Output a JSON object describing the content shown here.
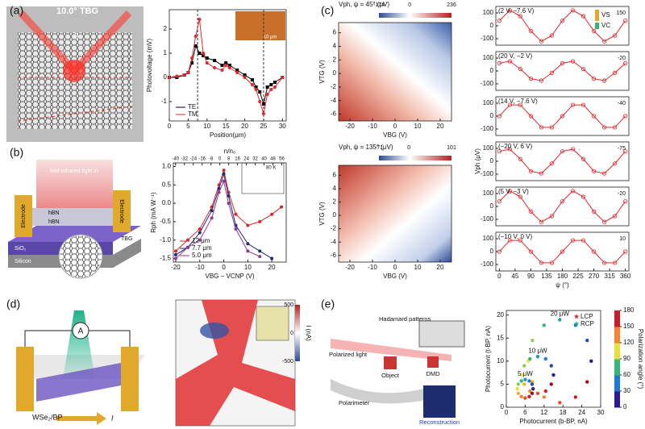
{
  "panels": {
    "a": {
      "label": "(a)",
      "title": "10.0° TBG",
      "angle": "θ",
      "inset_scale": "10 μm"
    },
    "b": {
      "label": "(b)",
      "light": "Mid-infrared light in",
      "electrode_left": "Electrode",
      "electrode_right": "Electrode",
      "hbn_top": "hBN",
      "hbn_bottom": "hBN",
      "tbg": "TBG",
      "sio2": "SiO₂",
      "silicon": "Silicon",
      "inset_temp": "80 K"
    },
    "c": {
      "label": "(c)",
      "vs": "VS",
      "vc": "VC",
      "maps": [
        {
          "title": "Vph, ψ = 45° (μV)",
          "clim": [
            -174,
            236
          ],
          "cticks": [
            -174,
            0,
            236
          ],
          "x_label": "VBG (V)",
          "y_label": "VTG (V)",
          "xlim": [
            -25,
            25
          ],
          "xticks": [
            -20,
            -10,
            0,
            10,
            20
          ],
          "ylim": [
            -7,
            7.5
          ],
          "yticks": [
            -6,
            -4,
            -2,
            0,
            2,
            4,
            6
          ]
        },
        {
          "title": "Vph, ψ = 135° (μV)",
          "clim": [
            -71,
            101
          ],
          "cticks": [
            -71,
            0,
            101
          ],
          "x_label": "VBG (V)",
          "y_label": "VTG (V)",
          "xlim": [
            -25,
            25
          ],
          "xticks": [
            -20,
            -10,
            0,
            10,
            20
          ],
          "ylim": [
            -7,
            7.5
          ],
          "yticks": [
            -6,
            -4,
            -2,
            0,
            2,
            4,
            6
          ]
        }
      ]
    },
    "d": {
      "label": "(d)",
      "meter": "A",
      "material": "WSe₂/BP",
      "current": "I",
      "cbar_label": "I (nA)",
      "cticks": [
        500,
        0,
        -500
      ],
      "clim": [
        -500,
        500
      ]
    },
    "e": {
      "label": "(e)",
      "patterns": "Hadamard patterns",
      "light": "Polarized light",
      "object": "Object",
      "dmd": "DMD",
      "polarimeter": "Polarimeter",
      "reconstruction": "Reconstruction"
    }
  },
  "chart_data": [
    {
      "type": "line",
      "x_label": "Position(μm)",
      "y_label": "Photovoltage (mV)",
      "x": [
        0,
        2,
        4,
        5,
        6,
        7,
        8,
        9,
        10,
        12,
        14,
        15,
        16,
        18,
        20,
        22,
        23,
        24,
        25,
        26,
        27,
        28,
        30
      ],
      "series": [
        {
          "name": "TE",
          "color": "#000000",
          "marker": "square",
          "values": [
            0,
            0,
            0.1,
            0.2,
            0.6,
            1.3,
            1.0,
            0.9,
            0.8,
            0.7,
            0.5,
            0.6,
            0.5,
            0.3,
            0.1,
            -0.1,
            -0.4,
            -0.6,
            -1.1,
            -0.4,
            -0.3,
            -0.2,
            0
          ]
        },
        {
          "name": "TM",
          "color": "#e3262a",
          "marker": "circle",
          "values": [
            0,
            0.05,
            0.1,
            0.2,
            0.8,
            1.7,
            2.4,
            1.0,
            0.6,
            0.4,
            0.3,
            0.5,
            0.4,
            0.2,
            0,
            -0.3,
            -0.5,
            -1.0,
            -1.5,
            -0.7,
            -0.5,
            -0.4,
            0
          ]
        }
      ],
      "xlim": [
        0,
        31
      ],
      "xticks": [
        0,
        5,
        10,
        15,
        20,
        25,
        30
      ],
      "ylim": [
        -1.8,
        2.8
      ],
      "yticks": [
        -1,
        0,
        1,
        2
      ],
      "vlines": [
        7.5,
        25
      ],
      "legend": "lower-left"
    },
    {
      "type": "line",
      "x_label": "VBG − VCNP (V)",
      "y_label": "Rph (mA W⁻¹)",
      "x2_label": "n/n₀",
      "x": [
        -20,
        -15,
        -10,
        -5,
        -2,
        0,
        2,
        5,
        10,
        15,
        20,
        24
      ],
      "series": [
        {
          "name": "12 μm",
          "color": "#d62728",
          "marker": "circle",
          "values": [
            -1.3,
            -1.0,
            -0.7,
            -0.1,
            0.5,
            0.9,
            0.3,
            -0.3,
            -0.6,
            -0.5,
            -0.3,
            -0.1
          ]
        },
        {
          "name": "7.7 μm",
          "color": "#1f2a78",
          "marker": "circle",
          "values": [
            -1.4,
            -1.2,
            -0.8,
            -0.2,
            0.4,
            0.8,
            0.2,
            -0.6,
            -1.1,
            -1.3,
            -1.5,
            null
          ]
        },
        {
          "name": "5.0 μm",
          "color": "#8e3a8e",
          "marker": "circle",
          "values": [
            -1.5,
            -1.2,
            -1.0,
            -0.4,
            0.3,
            0.6,
            0.0,
            -0.7,
            -1.3,
            -1.45,
            null,
            null
          ]
        }
      ],
      "xlim": [
        -21,
        26
      ],
      "xticks": [
        -20,
        -10,
        0,
        10,
        20
      ],
      "x2lim": [
        -42,
        60
      ],
      "x2ticks": [
        -40,
        -32,
        -24,
        -16,
        -8,
        0,
        8,
        16,
        24,
        32,
        40,
        48,
        56
      ],
      "ylim": [
        -1.6,
        1.1
      ],
      "yticks": [
        -1.5,
        {
          "value": -1,
          "label": "-1.0"
        },
        -0.5,
        {
          "value": 0,
          "label": "0.0"
        },
        0.5,
        {
          "value": 1,
          "label": "1.0"
        }
      ],
      "legend": "lower-left"
    },
    {
      "type": "line",
      "title": "(2 V, −7.6 V)",
      "inset_label": 150,
      "x": [
        0,
        30,
        60,
        90,
        120,
        150,
        180,
        210,
        240,
        270,
        300,
        330,
        360
      ],
      "series": [
        {
          "color": "#e3262a",
          "marker": "open-circle",
          "values": [
            40,
            120,
            75,
            -40,
            -120,
            -75,
            40,
            120,
            75,
            -40,
            -120,
            -75,
            40
          ]
        }
      ],
      "xlim": [
        -10,
        370
      ],
      "ylim": [
        -150,
        150
      ],
      "yticks": [
        -100,
        0,
        100
      ]
    },
    {
      "type": "line",
      "title": "(20 V, −2 V)",
      "inset_label": -20,
      "x": [
        0,
        30,
        60,
        90,
        120,
        150,
        180,
        210,
        240,
        270,
        300,
        330,
        360
      ],
      "series": [
        {
          "color": "#e3262a",
          "marker": "open-circle",
          "values": [
            60,
            75,
            15,
            -60,
            -75,
            -15,
            60,
            75,
            15,
            -60,
            -75,
            -15,
            60
          ]
        }
      ],
      "xlim": [
        -10,
        370
      ],
      "ylim": [
        -150,
        150
      ],
      "yticks": [
        -100,
        0,
        100
      ]
    },
    {
      "type": "line",
      "title": "(14 V, −7.6 V)",
      "inset_label": -40,
      "x": [
        0,
        30,
        60,
        90,
        120,
        150,
        180,
        210,
        240,
        270,
        300,
        330,
        360
      ],
      "series": [
        {
          "color": "#e3262a",
          "marker": "open-circle",
          "values": [
            0,
            87,
            87,
            0,
            -87,
            -87,
            0,
            87,
            87,
            0,
            -87,
            -87,
            0
          ]
        }
      ],
      "xlim": [
        -10,
        370
      ],
      "ylim": [
        -150,
        150
      ],
      "yticks": [
        -100,
        0,
        100
      ]
    },
    {
      "type": "line",
      "title": "(−20 V, 6 V)",
      "inset_label": -75,
      "y_label": "Vph (μV)",
      "x": [
        0,
        30,
        60,
        90,
        120,
        150,
        180,
        210,
        240,
        270,
        300,
        330,
        360
      ],
      "series": [
        {
          "color": "#e3262a",
          "marker": "open-circle",
          "values": [
            77,
            94,
            17,
            -77,
            -94,
            -17,
            77,
            94,
            17,
            -77,
            -94,
            -17,
            77
          ]
        }
      ],
      "xlim": [
        -10,
        370
      ],
      "ylim": [
        -150,
        150
      ],
      "yticks": [
        -100,
        0,
        100
      ]
    },
    {
      "type": "line",
      "title": "(5 V, −3 V)",
      "inset_label": -20,
      "x": [
        0,
        30,
        60,
        90,
        120,
        150,
        180,
        210,
        240,
        270,
        300,
        330,
        360
      ],
      "series": [
        {
          "color": "#e3262a",
          "marker": "open-circle",
          "values": [
            40,
            120,
            75,
            -40,
            -120,
            -75,
            40,
            120,
            75,
            -40,
            -120,
            -75,
            40
          ]
        }
      ],
      "xlim": [
        -10,
        370
      ],
      "ylim": [
        -150,
        150
      ],
      "yticks": [
        -100,
        0,
        100
      ]
    },
    {
      "type": "line",
      "title": "(−10 V, 0 V)",
      "inset_label": 10,
      "x_label": "ψ (°)",
      "x": [
        0,
        30,
        60,
        90,
        120,
        150,
        180,
        210,
        240,
        270,
        300,
        330,
        360
      ],
      "series": [
        {
          "color": "#e3262a",
          "marker": "open-circle",
          "values": [
            0,
            87,
            87,
            0,
            -87,
            -87,
            0,
            87,
            87,
            0,
            -87,
            -87,
            0
          ]
        }
      ],
      "xlim": [
        -10,
        370
      ],
      "xticks": [
        0,
        45,
        90,
        135,
        180,
        225,
        270,
        315,
        360
      ],
      "ylim": [
        -150,
        150
      ],
      "yticks": [
        -100,
        0,
        100
      ]
    },
    {
      "type": "scatter",
      "x_label": "Photocurrent (b-BP, nA)",
      "y_label": "Photocurrent (t-BP, nA)",
      "series": [
        {
          "name": "20 μW",
          "x": [
            27,
            25.7,
            22,
            17,
            12,
            8.3,
            7,
            8.3,
            12,
            17,
            22,
            25.7
          ],
          "y": [
            10,
            14.5,
            17.8,
            19,
            17.8,
            14.5,
            10,
            5.5,
            2.2,
            1,
            2.2,
            5.5
          ],
          "angle": [
            0,
            15,
            30,
            45,
            60,
            75,
            90,
            105,
            120,
            135,
            150,
            165
          ]
        },
        {
          "name": "10 μW",
          "x": [
            15,
            14.3,
            12.5,
            10,
            7.5,
            5.7,
            5,
            5.7,
            7.5,
            10,
            12.5,
            14.3
          ],
          "y": [
            7,
            9,
            10.5,
            11,
            10.5,
            9,
            7,
            5,
            3.5,
            3,
            3.5,
            5
          ],
          "angle": [
            0,
            15,
            30,
            45,
            60,
            75,
            90,
            105,
            120,
            135,
            150,
            165
          ]
        },
        {
          "name": "5 μW",
          "x": [
            8.5,
            8.2,
            7.3,
            6,
            4.8,
            3.8,
            3.5,
            3.8,
            4.8,
            6,
            7.3,
            8.2
          ],
          "y": [
            4,
            5,
            5.7,
            6,
            5.7,
            5,
            4,
            3,
            2.3,
            2,
            2.3,
            3
          ],
          "angle": [
            0,
            15,
            30,
            45,
            60,
            75,
            90,
            105,
            120,
            135,
            150,
            165
          ]
        }
      ],
      "legend_items": [
        {
          "name": "LCP",
          "color": "#d62728"
        },
        {
          "name": "RCP",
          "color": "#2a9d8f"
        }
      ],
      "xlim": [
        0,
        30
      ],
      "xticks": [
        0,
        6,
        12,
        18,
        24,
        30
      ],
      "ylim": [
        0,
        21
      ],
      "yticks": [
        0,
        5,
        10,
        15,
        20
      ],
      "colorscale": [
        "#2b1b8f",
        "#1f78d1",
        "#35b779",
        "#e8e03a",
        "#f58231",
        "#c81e2b",
        "#6d0019"
      ],
      "clim": [
        0,
        180
      ],
      "cticks": [
        0,
        30,
        60,
        90,
        120,
        150,
        180
      ],
      "colorbar_label": "Polarization angle (°)"
    }
  ]
}
